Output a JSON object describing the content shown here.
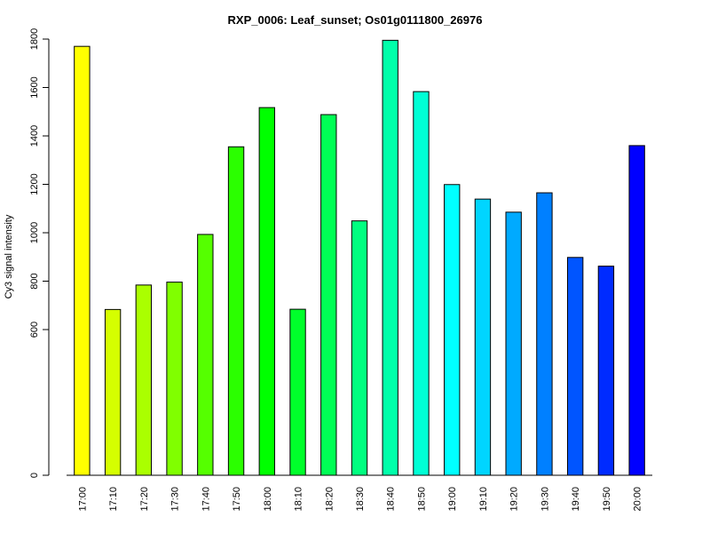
{
  "chart_data": {
    "type": "bar",
    "title": "RXP_0006: Leaf_sunset; Os01g0111800_26976",
    "xlabel": "",
    "ylabel": "Cy3 signal intensity",
    "categories": [
      "17:00",
      "17:10",
      "17:20",
      "17:30",
      "17:40",
      "17:50",
      "18:00",
      "18:10",
      "18:20",
      "18:30",
      "18:40",
      "18:50",
      "19:00",
      "19:10",
      "19:20",
      "19:30",
      "19:40",
      "19:50",
      "20:00"
    ],
    "values": [
      1770,
      683,
      784,
      796,
      993,
      1355,
      1517,
      684,
      1488,
      1049,
      1795,
      1583,
      1199,
      1139,
      1085,
      1165,
      898,
      862,
      1360
    ],
    "colors": [
      "#FFFF00",
      "#D5FF00",
      "#AAFF00",
      "#80FF00",
      "#55FF00",
      "#2BFF00",
      "#00FF00",
      "#00FF2B",
      "#00FF55",
      "#00FF80",
      "#00FFAA",
      "#00FFD5",
      "#00FFFF",
      "#00D5FF",
      "#00AAFF",
      "#0080FF",
      "#0055FF",
      "#002BFF",
      "#0000FF"
    ],
    "yticks": [
      0,
      600,
      800,
      1000,
      1200,
      1400,
      1600,
      1800
    ],
    "ylim": [
      0,
      1800
    ],
    "y_scale": "broken: 0 to 600 compressed",
    "grid": false,
    "legend": "none"
  }
}
